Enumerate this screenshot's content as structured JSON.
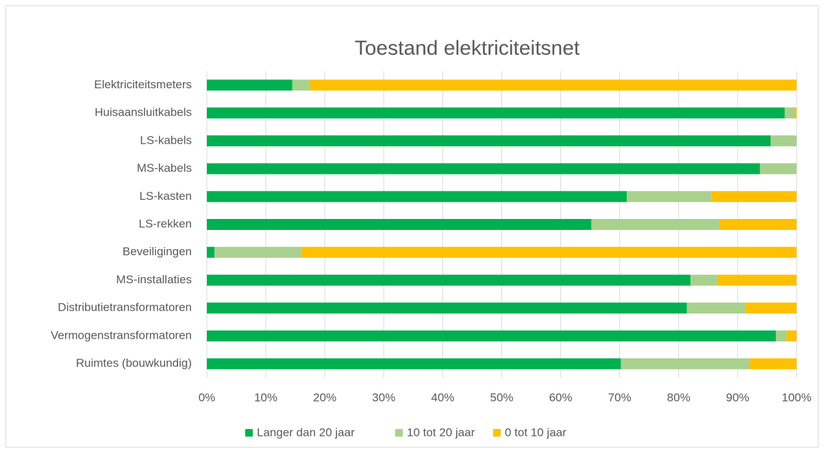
{
  "chart_data": {
    "type": "stacked-barh",
    "title": "Toestand elektriciteitsnet",
    "categories": [
      "Elektriciteitsmeters",
      "Huisaansluitkabels",
      "LS-kabels",
      "MS-kabels",
      "LS-kasten",
      "LS-rekken",
      "Beveiligingen",
      "MS-installaties",
      "Distributietransformatoren",
      "Vermogenstransformatoren",
      "Ruimtes (bouwkundig)"
    ],
    "series": [
      {
        "name": "Langer dan 20 jaar",
        "color": "#00b050",
        "values": [
          14.5,
          98,
          95.6,
          93.8,
          71.2,
          65.2,
          1.3,
          82,
          81.4,
          96.5,
          70.2
        ]
      },
      {
        "name": "10 tot 20 jaar",
        "color": "#a9d18e",
        "values": [
          3,
          1.7,
          4.4,
          6.2,
          14.3,
          21.7,
          14.7,
          4.6,
          9.9,
          1.8,
          21.9
        ]
      },
      {
        "name": "0 tot 10 jaar",
        "color": "#ffc000",
        "values": [
          82.5,
          0.3,
          0,
          0,
          14.5,
          13.1,
          84,
          13.4,
          8.7,
          1.7,
          7.9
        ]
      }
    ],
    "xlim": [
      0,
      100
    ],
    "xticks": [
      {
        "value": 0,
        "label": "0%"
      },
      {
        "value": 10,
        "label": "10%"
      },
      {
        "value": 20,
        "label": "20%"
      },
      {
        "value": 30,
        "label": "30%"
      },
      {
        "value": 40,
        "label": "40%"
      },
      {
        "value": 50,
        "label": "50%"
      },
      {
        "value": 60,
        "label": "60%"
      },
      {
        "value": 70,
        "label": "70%"
      },
      {
        "value": 80,
        "label": "80%"
      },
      {
        "value": 90,
        "label": "90%"
      },
      {
        "value": 100,
        "label": "100%"
      }
    ],
    "grid": true,
    "legend": "bottom"
  }
}
